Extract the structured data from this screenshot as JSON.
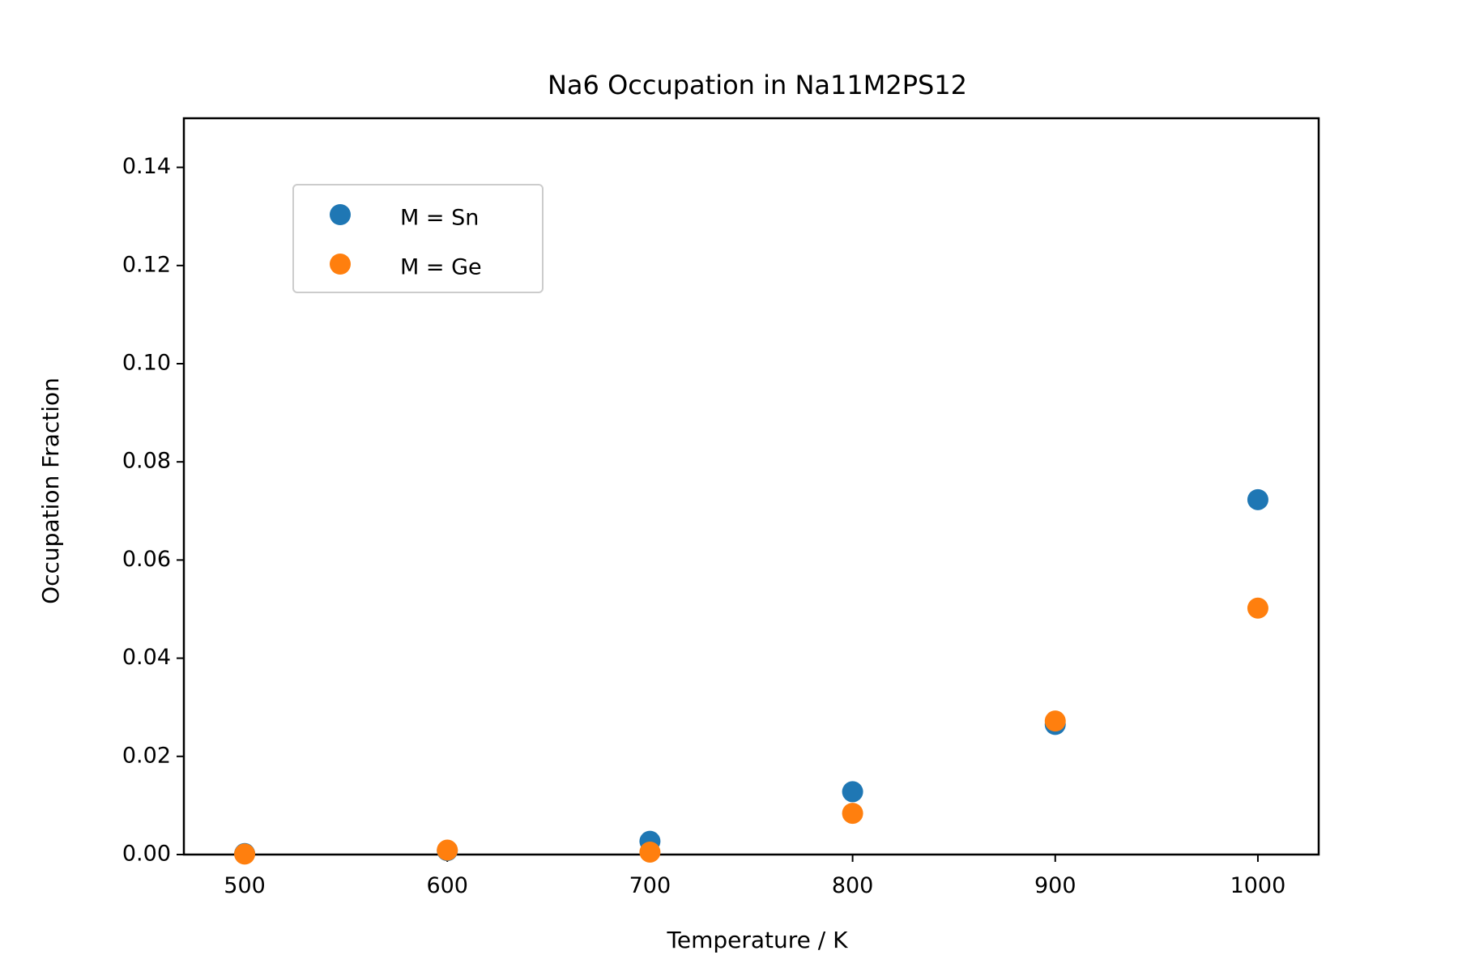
{
  "chart_data": {
    "type": "scatter",
    "title": "Na6 Occupation in Na11M2PS12",
    "xlabel": "Temperature / K",
    "ylabel": "Occupation Fraction",
    "xlim": [
      470,
      1030
    ],
    "ylim": [
      0,
      0.15
    ],
    "xticks": [
      500,
      600,
      700,
      800,
      900,
      1000
    ],
    "xtick_labels": [
      "500",
      "600",
      "700",
      "800",
      "900",
      "1000"
    ],
    "yticks": [
      0.0,
      0.02,
      0.04,
      0.06,
      0.08,
      0.1,
      0.12,
      0.14
    ],
    "ytick_labels": [
      "0.00",
      "0.02",
      "0.04",
      "0.06",
      "0.08",
      "0.10",
      "0.12",
      "0.14"
    ],
    "grid": false,
    "legend_position": "upper-left",
    "series": [
      {
        "name": "M = Sn",
        "color": "#1f77b4",
        "x": [
          500,
          600,
          700,
          800,
          900,
          1000
        ],
        "y": [
          0.0002,
          0.0008,
          0.0027,
          0.0128,
          0.0265,
          0.0723
        ]
      },
      {
        "name": "M = Ge",
        "color": "#ff7f0e",
        "x": [
          500,
          600,
          700,
          800,
          900,
          1000
        ],
        "y": [
          0.0001,
          0.0009,
          0.0005,
          0.0084,
          0.0272,
          0.0502
        ]
      }
    ]
  }
}
